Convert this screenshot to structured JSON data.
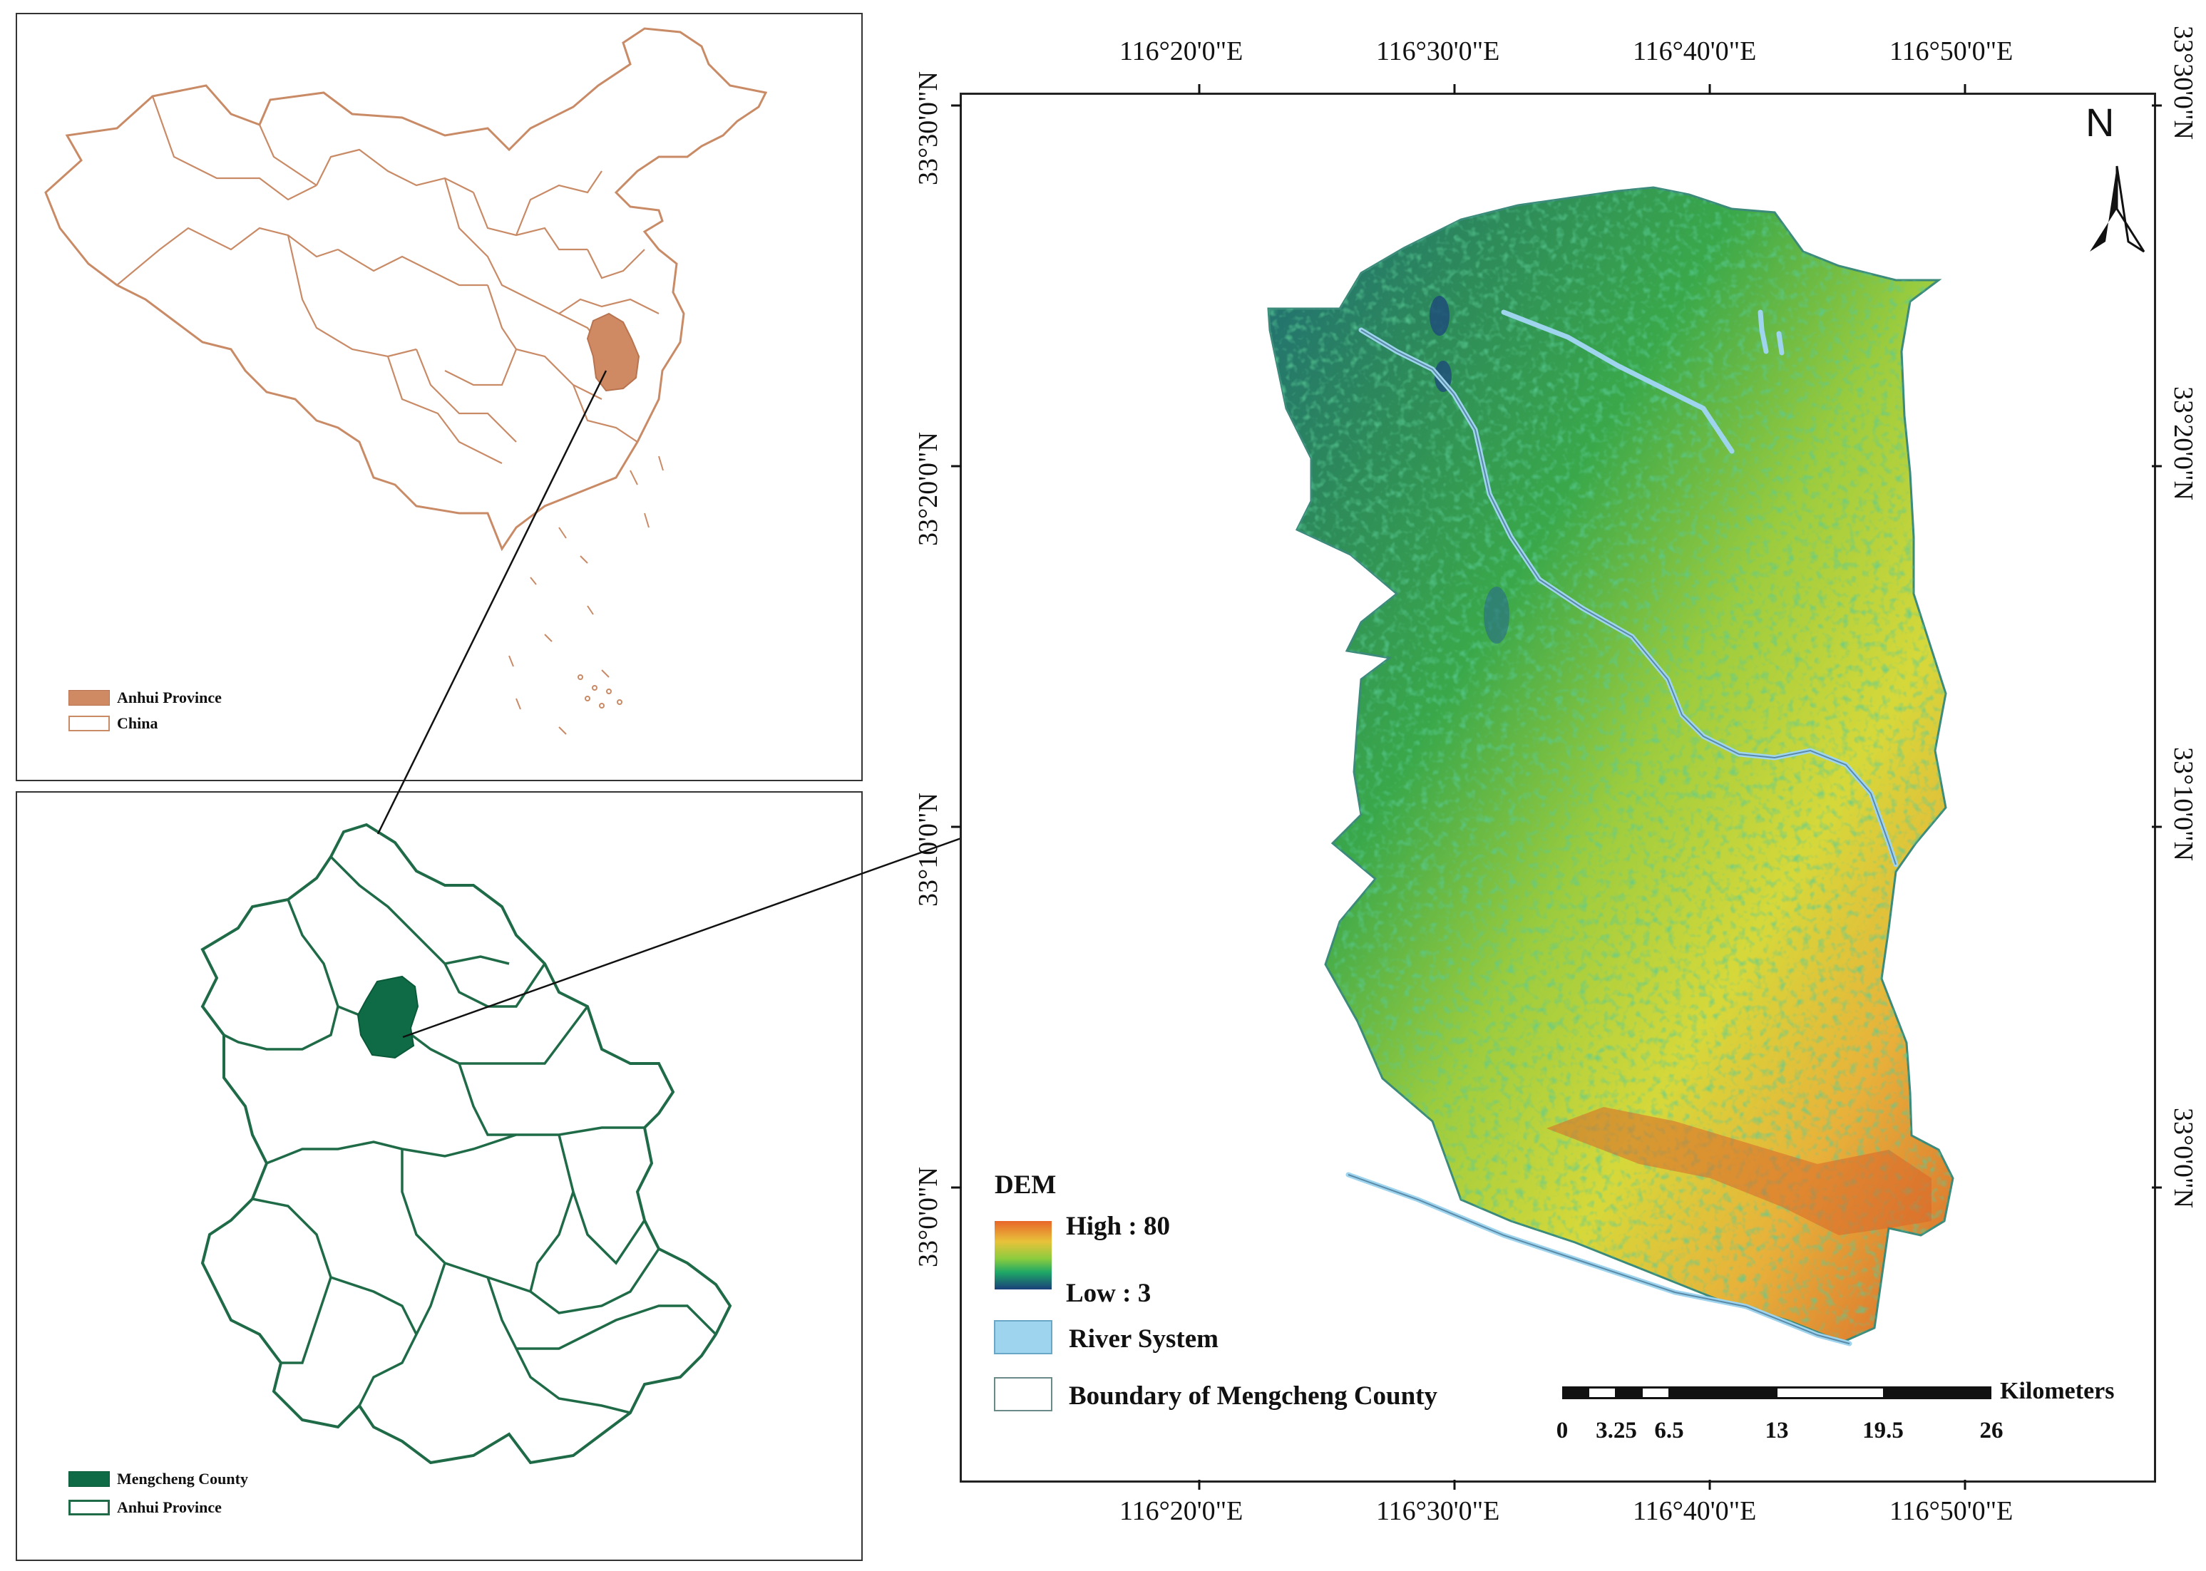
{
  "china_inset": {
    "legend": [
      {
        "label": "Anhui Province",
        "color": "#d08a63",
        "style": "filled"
      },
      {
        "label": "China",
        "color": "#c98a66",
        "style": "outline"
      }
    ]
  },
  "anhui_inset": {
    "legend": [
      {
        "label": "Mengcheng County",
        "color": "#0e6b46",
        "style": "filled"
      },
      {
        "label": "Anhui Province",
        "color": "#1f6b47",
        "style": "outline"
      }
    ]
  },
  "main_map": {
    "top_ticks": [
      "116°20'0\"E",
      "116°30'0\"E",
      "116°40'0\"E",
      "116°50'0\"E"
    ],
    "bottom_ticks": [
      "116°20'0\"E",
      "116°30'0\"E",
      "116°40'0\"E",
      "116°50'0\"E"
    ],
    "left_ticks": [
      "33°30'0\"N",
      "33°20'0\"N",
      "33°10'0\"N",
      "33°0'0\"N"
    ],
    "right_ticks": [
      "33°30'0\"N",
      "33°20'0\"N",
      "33°10'0\"N",
      "33°0'0\"N"
    ],
    "north_label": "N",
    "legend": {
      "title": "DEM",
      "high_label": "High : 80",
      "low_label": "Low : 3",
      "river_label": "River System",
      "boundary_label": "Boundary of Mengcheng County",
      "river_color": "#9ed4ee",
      "high_color": "#e8662a",
      "low_color": "#1a3f7a"
    },
    "scale_bar": {
      "unit": "Kilometers",
      "labels": [
        "0",
        "3.25",
        "6.5",
        "13",
        "19.5",
        "26"
      ]
    }
  },
  "colors": {
    "china_outline": "#c98a66",
    "anhui_fill": "#d08a63",
    "anhui_outline": "#1f6b47",
    "mengcheng_fill": "#0e6b46"
  }
}
